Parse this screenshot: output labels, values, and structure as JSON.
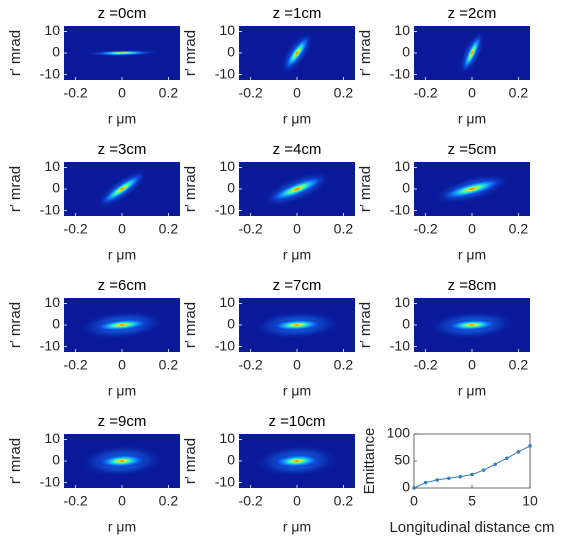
{
  "chart_data": [
    {
      "type": "heatmap",
      "title": "z =0cm",
      "xlabel": "r μm",
      "ylabel": "r′ mrad",
      "xlim": [
        -0.25,
        0.25
      ],
      "xticks": [
        -0.2,
        0,
        0.2
      ],
      "ylim": [
        -12.5,
        12.5
      ],
      "yticks": [
        -10,
        0,
        10
      ]
    },
    {
      "type": "heatmap",
      "title": "z =1cm",
      "xlabel": "r μm",
      "ylabel": "r′ mrad",
      "xlim": [
        -0.25,
        0.25
      ],
      "xticks": [
        -0.2,
        0,
        0.2
      ],
      "ylim": [
        -12.5,
        12.5
      ],
      "yticks": [
        -10,
        0,
        10
      ]
    },
    {
      "type": "heatmap",
      "title": "z =2cm",
      "xlabel": "r μm",
      "ylabel": "r′ mrad",
      "xlim": [
        -0.25,
        0.25
      ],
      "xticks": [
        -0.2,
        0,
        0.2
      ],
      "ylim": [
        -12.5,
        12.5
      ],
      "yticks": [
        -10,
        0,
        10
      ]
    },
    {
      "type": "heatmap",
      "title": "z =3cm",
      "xlabel": "r μm",
      "ylabel": "r′ mrad",
      "xlim": [
        -0.25,
        0.25
      ],
      "xticks": [
        -0.2,
        0,
        0.2
      ],
      "ylim": [
        -12.5,
        12.5
      ],
      "yticks": [
        -10,
        0,
        10
      ]
    },
    {
      "type": "heatmap",
      "title": "z =4cm",
      "xlabel": "r μm",
      "ylabel": "r′ mrad",
      "xlim": [
        -0.25,
        0.25
      ],
      "xticks": [
        -0.2,
        0,
        0.2
      ],
      "ylim": [
        -12.5,
        12.5
      ],
      "yticks": [
        -10,
        0,
        10
      ]
    },
    {
      "type": "heatmap",
      "title": "z =5cm",
      "xlabel": "r μm",
      "ylabel": "r′ mrad",
      "xlim": [
        -0.25,
        0.25
      ],
      "xticks": [
        -0.2,
        0,
        0.2
      ],
      "ylim": [
        -12.5,
        12.5
      ],
      "yticks": [
        -10,
        0,
        10
      ]
    },
    {
      "type": "heatmap",
      "title": "z =6cm",
      "xlabel": "r μm",
      "ylabel": "r′ mrad",
      "xlim": [
        -0.25,
        0.25
      ],
      "xticks": [
        -0.2,
        0,
        0.2
      ],
      "ylim": [
        -12.5,
        12.5
      ],
      "yticks": [
        -10,
        0,
        10
      ]
    },
    {
      "type": "heatmap",
      "title": "z =7cm",
      "xlabel": "r μm",
      "ylabel": "r′ mrad",
      "xlim": [
        -0.25,
        0.25
      ],
      "xticks": [
        -0.2,
        0,
        0.2
      ],
      "ylim": [
        -12.5,
        12.5
      ],
      "yticks": [
        -10,
        0,
        10
      ]
    },
    {
      "type": "heatmap",
      "title": "z =8cm",
      "xlabel": "r μm",
      "ylabel": "r′ mrad",
      "xlim": [
        -0.25,
        0.25
      ],
      "xticks": [
        -0.2,
        0,
        0.2
      ],
      "ylim": [
        -12.5,
        12.5
      ],
      "yticks": [
        -10,
        0,
        10
      ]
    },
    {
      "type": "heatmap",
      "title": "z =9cm",
      "xlabel": "r μm",
      "ylabel": "r′ mrad",
      "xlim": [
        -0.25,
        0.25
      ],
      "xticks": [
        -0.2,
        0,
        0.2
      ],
      "ylim": [
        -12.5,
        12.5
      ],
      "yticks": [
        -10,
        0,
        10
      ]
    },
    {
      "type": "heatmap",
      "title": "z =10cm",
      "xlabel": "r μm",
      "ylabel": "r′ mrad",
      "xlim": [
        -0.25,
        0.25
      ],
      "xticks": [
        -0.2,
        0,
        0.2
      ],
      "ylim": [
        -12.5,
        12.5
      ],
      "yticks": [
        -10,
        0,
        10
      ]
    },
    {
      "type": "line",
      "xlabel": "Longitudinal distance cm",
      "ylabel": "Emittance",
      "x": [
        0,
        1,
        2,
        3,
        4,
        5,
        6,
        7,
        8,
        9,
        10
      ],
      "series": [
        {
          "color": "#3a7fc0",
          "values": [
            0,
            10,
            15,
            18,
            21,
            25,
            33,
            44,
            55,
            67,
            78
          ]
        }
      ],
      "xlim": [
        0,
        10
      ],
      "xticks": [
        0,
        5,
        10
      ],
      "ylim": [
        0,
        100
      ],
      "yticks": [
        0,
        50,
        100
      ]
    }
  ]
}
